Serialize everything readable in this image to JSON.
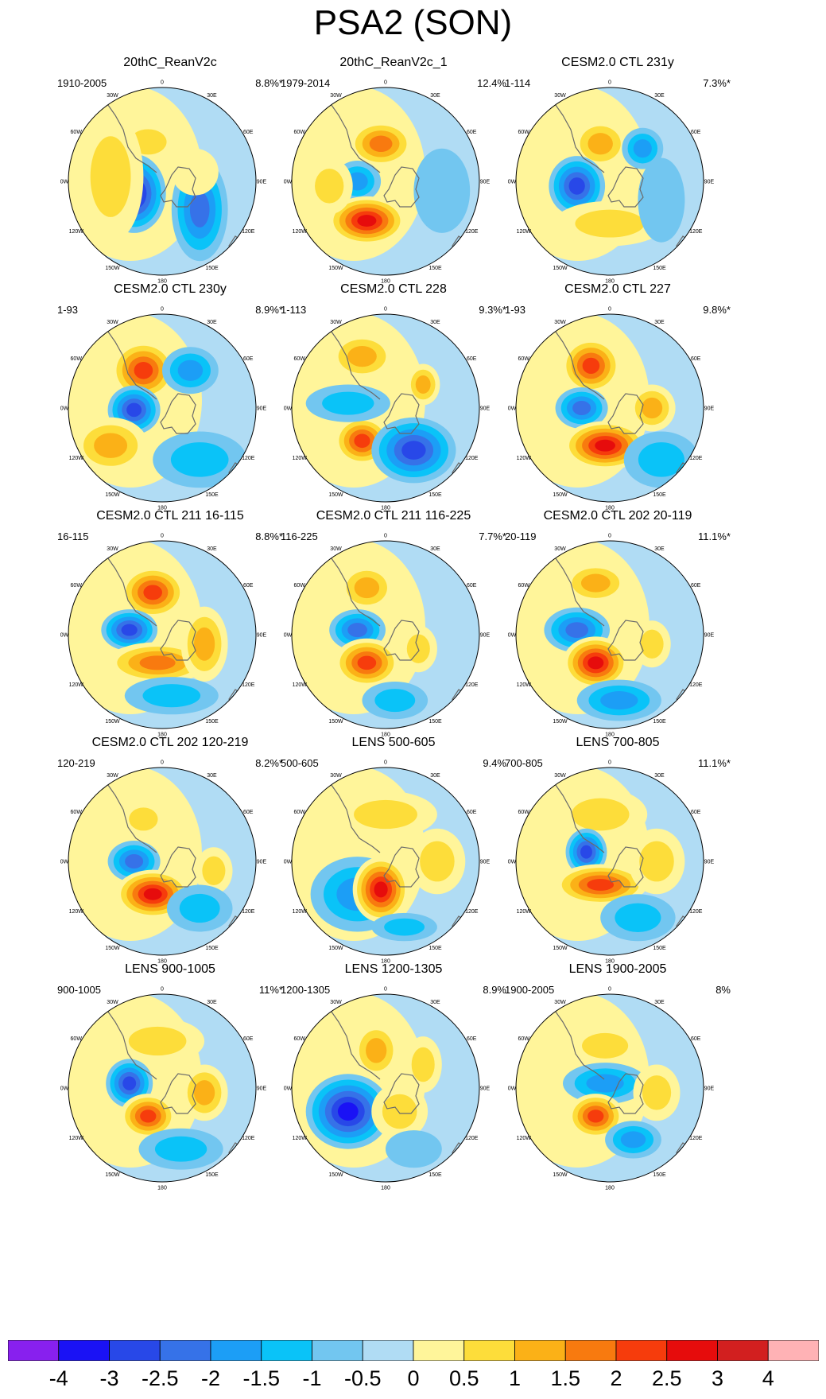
{
  "title": "PSA2 (SON)",
  "colorbar": {
    "labels": [
      "-4",
      "-3",
      "-2.5",
      "-2",
      "-1.5",
      "-1",
      "-0.5",
      "0",
      "0.5",
      "1",
      "1.5",
      "2",
      "2.5",
      "3",
      "4"
    ],
    "colors": [
      "#8820ee",
      "#1a12f5",
      "#2848e8",
      "#3672e8",
      "#1c9ef6",
      "#0ac3f8",
      "#72c6f0",
      "#b0dcf4",
      "#fff59a",
      "#fddd3a",
      "#fbb117",
      "#f87a0f",
      "#f63c0c",
      "#e60c0c",
      "#d21f1f",
      "#ffb2b5"
    ]
  },
  "lon_labels": [
    "0",
    "30E",
    "60E",
    "90E",
    "120E",
    "150E",
    "180",
    "150W",
    "120W",
    "90W",
    "60W",
    "30W"
  ],
  "panels": [
    {
      "title": "20thC_ReanV2c",
      "period": "1910-2005",
      "variance": "8.8%*"
    },
    {
      "title": "20thC_ReanV2c_1",
      "period": "1979-2014",
      "variance": "12.4%"
    },
    {
      "title": "CESM2.0 CTL 231y",
      "period": "1-114",
      "variance": "7.3%*"
    },
    {
      "title": "CESM2.0 CTL 230y",
      "period": "1-93",
      "variance": "8.9%*"
    },
    {
      "title": "CESM2.0 CTL 228",
      "period": "1-113",
      "variance": "9.3%*"
    },
    {
      "title": "CESM2.0 CTL 227",
      "period": "1-93",
      "variance": "9.8%*"
    },
    {
      "title": "CESM2.0 CTL 211 16-115",
      "period": "16-115",
      "variance": "8.8%*"
    },
    {
      "title": "CESM2.0 CTL 211 116-225",
      "period": "116-225",
      "variance": "7.7%*"
    },
    {
      "title": "CESM2.0 CTL 202 20-119",
      "period": "20-119",
      "variance": "11.1%*"
    },
    {
      "title": "CESM2.0 CTL 202 120-219",
      "period": "120-219",
      "variance": "8.2%*"
    },
    {
      "title": "LENS 500-605",
      "period": "500-605",
      "variance": "9.4%"
    },
    {
      "title": "LENS 700-805",
      "period": "700-805",
      "variance": "11.1%*"
    },
    {
      "title": "LENS 900-1005",
      "period": "900-1005",
      "variance": "11%*"
    },
    {
      "title": "LENS 1200-1305",
      "period": "1200-1305",
      "variance": "8.9%"
    },
    {
      "title": "LENS 1900-2005",
      "period": "1900-2005",
      "variance": "8%"
    }
  ]
}
